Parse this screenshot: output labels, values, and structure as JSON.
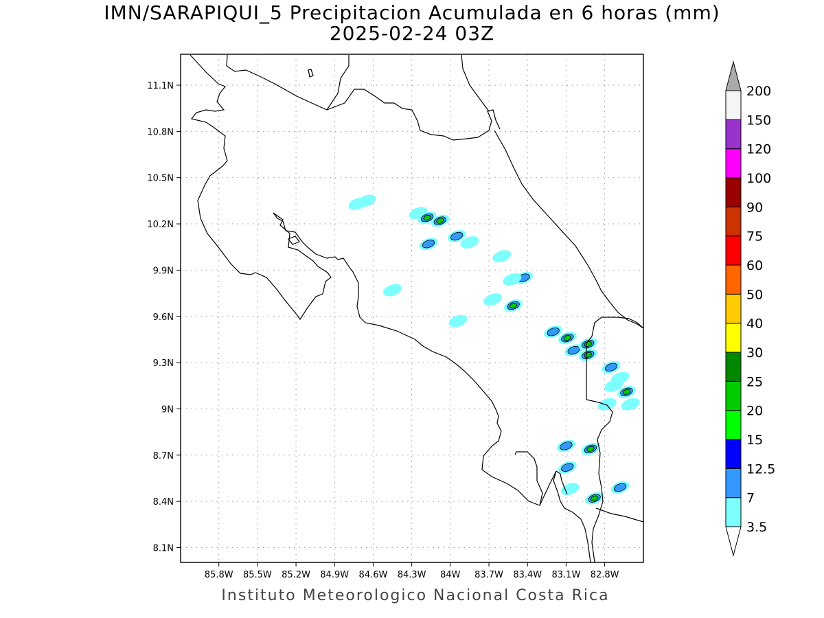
{
  "title": {
    "line1": "IMN/SARAPIQUI_5 Precipitacion Acumulada en 6 horas (mm)",
    "line2": "2025-02-24 03Z"
  },
  "footer": "Instituto Meteorologico Nacional Costa Rica",
  "map": {
    "lat_range": [
      8.0,
      11.3
    ],
    "lon_range": [
      -86.0,
      -82.75
    ],
    "lat_ticks": [
      {
        "value": 11.1,
        "label": "11.1N"
      },
      {
        "value": 10.8,
        "label": "10.8N"
      },
      {
        "value": 10.5,
        "label": "10.5N"
      },
      {
        "value": 10.2,
        "label": "10.2N"
      },
      {
        "value": 9.9,
        "label": "9.9N"
      },
      {
        "value": 9.6,
        "label": "9.6N"
      },
      {
        "value": 9.3,
        "label": "9.3N"
      },
      {
        "value": 9.0,
        "label": "9N"
      },
      {
        "value": 8.7,
        "label": "8.7N"
      },
      {
        "value": 8.4,
        "label": "8.4N"
      },
      {
        "value": 8.1,
        "label": "8.1N"
      }
    ],
    "lon_ticks": [
      {
        "value": -85.8,
        "label": "85.8W"
      },
      {
        "value": -85.5,
        "label": "85.5W"
      },
      {
        "value": -85.2,
        "label": "85.2W"
      },
      {
        "value": -84.9,
        "label": "84.9W"
      },
      {
        "value": -84.6,
        "label": "84.6W"
      },
      {
        "value": -84.3,
        "label": "84.3W"
      },
      {
        "value": -84.0,
        "label": "84W"
      },
      {
        "value": -83.7,
        "label": "83.7W"
      },
      {
        "value": -83.4,
        "label": "83.4W"
      },
      {
        "value": -83.1,
        "label": "83.1W"
      },
      {
        "value": -82.8,
        "label": "82.8W"
      }
    ],
    "grid": true,
    "precip_cells": [
      {
        "lon": -84.65,
        "lat": 10.35,
        "level": 0
      },
      {
        "lon": -84.72,
        "lat": 10.33,
        "level": 0
      },
      {
        "lon": -84.25,
        "lat": 10.27,
        "level": 0
      },
      {
        "lon": -84.18,
        "lat": 10.24,
        "level": 2
      },
      {
        "lon": -84.08,
        "lat": 10.22,
        "level": 2
      },
      {
        "lon": -83.95,
        "lat": 10.12,
        "level": 1
      },
      {
        "lon": -83.85,
        "lat": 10.08,
        "level": 0
      },
      {
        "lon": -84.17,
        "lat": 10.07,
        "level": 1
      },
      {
        "lon": -83.6,
        "lat": 9.99,
        "level": 0
      },
      {
        "lon": -83.43,
        "lat": 9.85,
        "level": 1
      },
      {
        "lon": -83.52,
        "lat": 9.84,
        "level": 0
      },
      {
        "lon": -83.67,
        "lat": 9.71,
        "level": 0
      },
      {
        "lon": -83.51,
        "lat": 9.67,
        "level": 2
      },
      {
        "lon": -83.94,
        "lat": 9.57,
        "level": 0
      },
      {
        "lon": -84.45,
        "lat": 9.77,
        "level": 0
      },
      {
        "lon": -83.2,
        "lat": 9.5,
        "level": 1
      },
      {
        "lon": -83.09,
        "lat": 9.46,
        "level": 2
      },
      {
        "lon": -83.04,
        "lat": 9.38,
        "level": 1
      },
      {
        "lon": -82.93,
        "lat": 9.42,
        "level": 2
      },
      {
        "lon": -82.93,
        "lat": 9.35,
        "level": 2
      },
      {
        "lon": -82.75,
        "lat": 9.27,
        "level": 1
      },
      {
        "lon": -82.68,
        "lat": 9.2,
        "level": 0
      },
      {
        "lon": -82.63,
        "lat": 9.11,
        "level": 2
      },
      {
        "lon": -82.78,
        "lat": 9.03,
        "level": 0
      },
      {
        "lon": -82.6,
        "lat": 9.03,
        "level": 0
      },
      {
        "lon": -83.1,
        "lat": 8.76,
        "level": 1
      },
      {
        "lon": -82.91,
        "lat": 8.74,
        "level": 2
      },
      {
        "lon": -83.09,
        "lat": 8.62,
        "level": 1
      },
      {
        "lon": -82.68,
        "lat": 8.49,
        "level": 1
      },
      {
        "lon": -82.88,
        "lat": 8.42,
        "level": 2
      },
      {
        "lon": -83.07,
        "lat": 8.48,
        "level": 0
      },
      {
        "lon": -82.73,
        "lat": 9.15,
        "level": 0
      }
    ]
  },
  "colorbar": {
    "colors": [
      "#7dffff",
      "#3399ff",
      "#0000ff",
      "#00ff00",
      "#00cc00",
      "#008800",
      "#ffff00",
      "#ffcc00",
      "#ff6600",
      "#ff0000",
      "#cc3300",
      "#990000",
      "#ff00ff",
      "#9933cc",
      "#f5f5f5"
    ],
    "labels": [
      "3.5",
      "7",
      "12.5",
      "15",
      "20",
      "25",
      "30",
      "40",
      "50",
      "60",
      "75",
      "90",
      "100",
      "120",
      "150",
      "200"
    ],
    "over_color": "#aaaaaa",
    "under_color": "#ffffff"
  },
  "coast_color": "#000000",
  "grid_color": "#999999"
}
